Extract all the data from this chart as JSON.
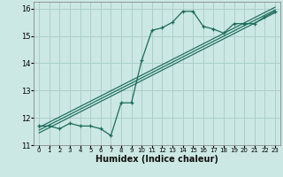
{
  "title": "",
  "xlabel": "Humidex (Indice chaleur)",
  "bg_color": "#cce8e4",
  "grid_color": "#aacfca",
  "line_color": "#1a6b5a",
  "xlim": [
    -0.5,
    23.5
  ],
  "ylim": [
    11.0,
    16.25
  ],
  "yticks": [
    11,
    12,
    13,
    14,
    15,
    16
  ],
  "xticks": [
    0,
    1,
    2,
    3,
    4,
    5,
    6,
    7,
    8,
    9,
    10,
    11,
    12,
    13,
    14,
    15,
    16,
    17,
    18,
    19,
    20,
    21,
    22,
    23
  ],
  "main_x": [
    0,
    1,
    2,
    3,
    4,
    5,
    6,
    7,
    8,
    9,
    10,
    11,
    12,
    13,
    14,
    15,
    16,
    17,
    18,
    19,
    20,
    21,
    22,
    23
  ],
  "main_y": [
    11.7,
    11.7,
    11.6,
    11.8,
    11.7,
    11.7,
    11.6,
    11.35,
    12.55,
    12.55,
    14.1,
    15.2,
    15.3,
    15.5,
    15.9,
    15.9,
    15.35,
    15.25,
    15.1,
    15.45,
    15.45,
    15.45,
    15.7,
    15.9
  ],
  "reg_lines": [
    {
      "x0": 0,
      "y0": 11.45,
      "x1": 23,
      "y1": 15.85
    },
    {
      "x0": 0,
      "y0": 11.55,
      "x1": 23,
      "y1": 15.95
    },
    {
      "x0": 0,
      "y0": 11.65,
      "x1": 23,
      "y1": 16.05
    }
  ],
  "xlabel_fontsize": 7,
  "xlabel_fontweight": "bold",
  "xtick_fontsize": 5,
  "ytick_fontsize": 6
}
